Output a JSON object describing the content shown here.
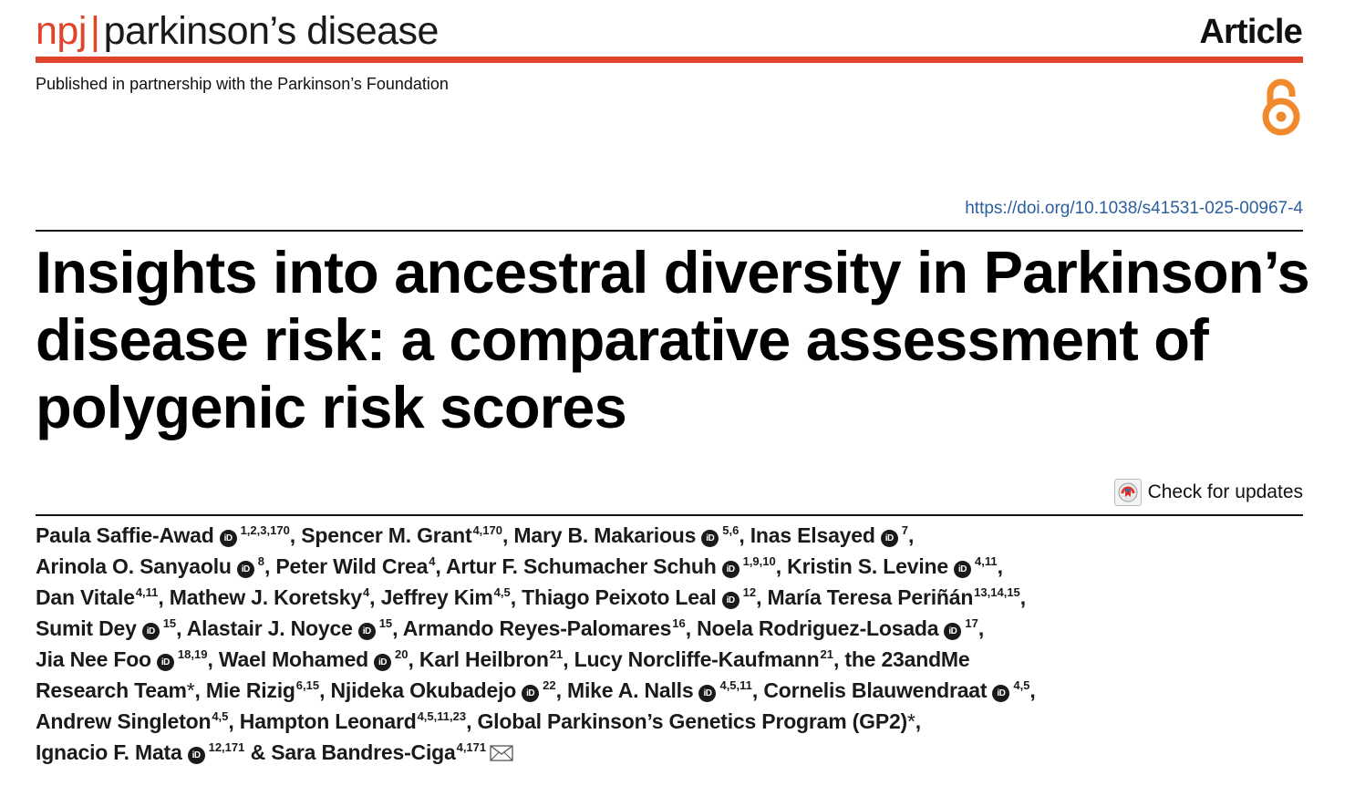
{
  "header": {
    "brand_prefix": "npj",
    "brand_separator": "|",
    "journal_name": "parkinson’s disease",
    "article_type": "Article",
    "partnership": "Published in partnership with the Parkinson’s Foundation",
    "open_access_icon": "open-access-lock-icon"
  },
  "doi": "https://doi.org/10.1038/s41531-025-00967-4",
  "title": "Insights into ancestral diversity in Parkinson’s disease risk: a comparative assessment of polygenic risk scores",
  "check_updates": {
    "label": "Check for updates",
    "icon": "crossmark-icon"
  },
  "authors": {
    "a01": {
      "name": "Paula Saffie-Awad",
      "aff": "1,2,3,170"
    },
    "a02": {
      "name": "Spencer M. Grant",
      "aff": "4,170"
    },
    "a03": {
      "name": "Mary B. Makarious",
      "aff": "5,6"
    },
    "a04": {
      "name": "Inas Elsayed",
      "aff": "7"
    },
    "a05": {
      "name": "Arinola O. Sanyaolu",
      "aff": "8"
    },
    "a06": {
      "name": "Peter Wild Crea",
      "aff": "4"
    },
    "a07": {
      "name": "Artur F. Schumacher Schuh",
      "aff": "1,9,10"
    },
    "a08": {
      "name": "Kristin S. Levine",
      "aff": "4,11"
    },
    "a09": {
      "name": "Dan Vitale",
      "aff": "4,11"
    },
    "a10": {
      "name": "Mathew J. Koretsky",
      "aff": "4"
    },
    "a11": {
      "name": "Jeffrey Kim",
      "aff": "4,5"
    },
    "a12": {
      "name": "Thiago Peixoto Leal",
      "aff": "12"
    },
    "a13": {
      "name": "María Teresa Periñán",
      "aff": "13,14,15"
    },
    "a14": {
      "name": "Sumit Dey",
      "aff": "15"
    },
    "a15": {
      "name": "Alastair J. Noyce",
      "aff": "15"
    },
    "a16": {
      "name": "Armando Reyes-Palomares",
      "aff": "16"
    },
    "a17": {
      "name": "Noela Rodriguez-Losada",
      "aff": "17"
    },
    "a18": {
      "name": "Jia Nee Foo",
      "aff": "18,19"
    },
    "a19": {
      "name": "Wael Mohamed",
      "aff": "20"
    },
    "a20": {
      "name": "Karl Heilbron",
      "aff": "21"
    },
    "a21": {
      "name": "Lucy Norcliffe-Kaufmann",
      "aff": "21"
    },
    "a22": {
      "name_part1": "the 23andMe",
      "name_part2": "Research Team",
      "marker": "*"
    },
    "a23": {
      "name": "Mie Rizig",
      "aff": "6,15"
    },
    "a24": {
      "name": "Njideka Okubadejo",
      "aff": "22"
    },
    "a25": {
      "name": "Mike A. Nalls",
      "aff": "4,5,11"
    },
    "a26": {
      "name": "Cornelis Blauwendraat",
      "aff": "4,5"
    },
    "a27": {
      "name": "Andrew Singleton",
      "aff": "4,5"
    },
    "a28": {
      "name": "Hampton Leonard",
      "aff": "4,5,11,23"
    },
    "a29": {
      "name": "Global Parkinson’s Genetics Program (GP2)",
      "marker": "*"
    },
    "a30": {
      "name": "Ignacio F. Mata",
      "aff": "12,171"
    },
    "a31": {
      "name": "Sara Bandres-Ciga",
      "aff": "4,171"
    },
    "separator": ",",
    "final_joiner": "&",
    "orcid_label": "iD",
    "orcid_icon": "orcid-icon",
    "corresponding_icon": "envelope-icon"
  }
}
